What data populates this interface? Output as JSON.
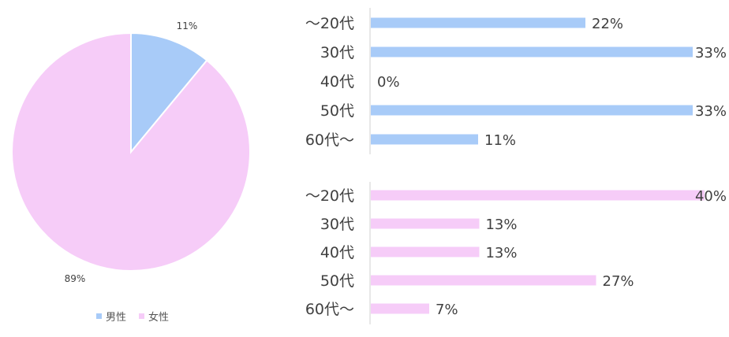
{
  "colors": {
    "male": "#a8cbf8",
    "female": "#f6ccf8",
    "axis": "#d0d0d0",
    "text": "#404040"
  },
  "chart_data": [
    {
      "type": "pie",
      "categories": [
        "男性",
        "女性"
      ],
      "values": [
        11,
        89
      ],
      "data_labels": [
        "11%",
        "89%"
      ],
      "legend": {
        "position": "bottom",
        "entries": [
          "男性",
          "女性"
        ]
      }
    },
    {
      "type": "bar",
      "orientation": "horizontal",
      "categories": [
        "～20代",
        "30代",
        "40代",
        "50代",
        "60代～"
      ],
      "values": [
        22,
        33,
        0,
        33,
        11
      ],
      "data_labels": [
        "22%",
        "33%",
        "0%",
        "33%",
        "11%"
      ],
      "xlim": [
        0,
        33
      ],
      "series_color": "male"
    },
    {
      "type": "bar",
      "orientation": "horizontal",
      "categories": [
        "～20代",
        "30代",
        "40代",
        "50代",
        "60代～"
      ],
      "values": [
        40,
        13,
        13,
        27,
        7
      ],
      "data_labels": [
        "40%",
        "13%",
        "13%",
        "27%",
        "7%"
      ],
      "xlim": [
        0,
        66
      ],
      "series_color": "female"
    }
  ]
}
